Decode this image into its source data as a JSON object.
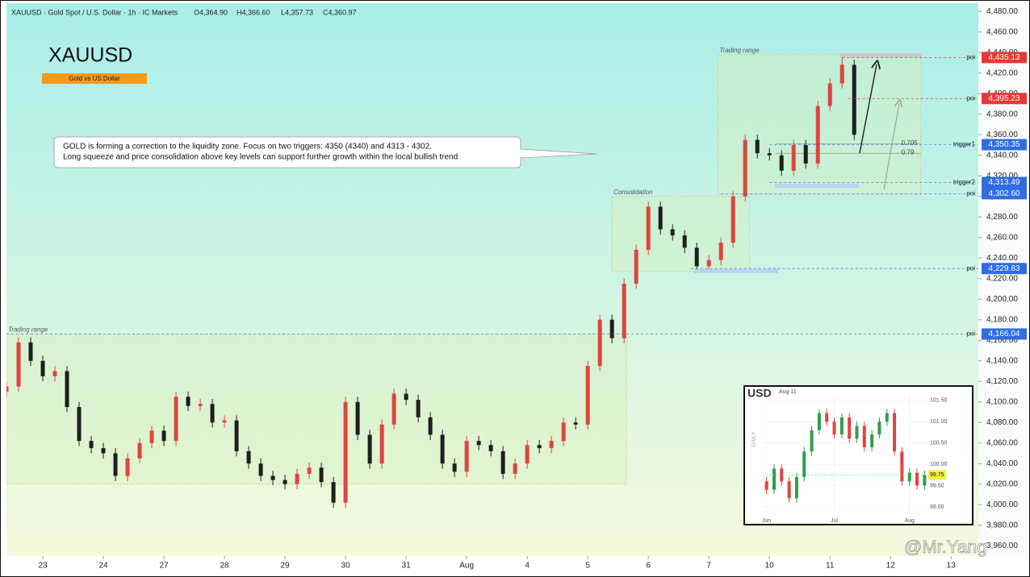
{
  "chart_data": [
    {
      "type": "candlestick",
      "title": "XAUUSD · Gold Spot / U.S. Dollar · 1h · IC Markets",
      "header": [
        {
          "value": 4364.9,
          "label": "O4,364.90"
        },
        {
          "value": 4366.6,
          "label": "H4,366.60"
        },
        {
          "value": 4357.73,
          "label": "L4,357.73"
        },
        {
          "value": 4360.97,
          "label": "C4,360.97"
        }
      ],
      "symbol": "XAUUSD",
      "subtitle": "Gold vs US Dollar",
      "annotation": [
        "GOLD is forming a correction to the liquidity zone. Focus on two triggers: 4350 (4340) and 4313 - 4302.",
        "Long squeeze and price consolidation above key levels can support further growth within the local bullish trend"
      ],
      "watermark": "@Mr.Yang",
      "up_color": "#e0443e",
      "down_color": "#1e1e1e",
      "x": [
        -0.6,
        -0.4,
        -0.2,
        0,
        0.2,
        0.4,
        0.6,
        0.8,
        1,
        1.2,
        1.4,
        1.6,
        1.8,
        2,
        2.2,
        2.4,
        2.6,
        2.8,
        3,
        3.2,
        3.4,
        3.6,
        3.8,
        4,
        4.2,
        4.4,
        4.6,
        4.8,
        5,
        5.2,
        5.4,
        5.6,
        5.8,
        6,
        6.2,
        6.4,
        6.6,
        6.8,
        7,
        7.2,
        7.4,
        7.6,
        7.8,
        8,
        8.2,
        8.4,
        8.6,
        8.8,
        9,
        9.2,
        9.4,
        9.6,
        9.8,
        10,
        10.2,
        10.4,
        10.6,
        10.8,
        11,
        11.2,
        11.4,
        11.6,
        11.8,
        12,
        12.2,
        12.4,
        12.6,
        12.8,
        13,
        13.2,
        13.4
      ],
      "open": [
        4110,
        4115,
        4158,
        4140,
        4125,
        4130,
        4095,
        4062,
        4055,
        4050,
        4028,
        4045,
        4060,
        4072,
        4062,
        4105,
        4096,
        4098,
        4080,
        4082,
        4052,
        4040,
        4028,
        4024,
        4020,
        4030,
        4036,
        4022,
        4002,
        4100,
        4068,
        4040,
        4078,
        4108,
        4102,
        4085,
        4068,
        4040,
        4032,
        4062,
        4058,
        4052,
        4030,
        4040,
        4058,
        4055,
        4062,
        4080,
        4078,
        4135,
        4180,
        4162,
        4215,
        4248,
        4290,
        4268,
        4262,
        4250,
        4232,
        4238,
        4255,
        4300,
        4355,
        4342,
        4340,
        4325,
        4350,
        4332,
        4388,
        4410,
        4428
      ],
      "high": [
        4120,
        4163,
        4163,
        4145,
        4135,
        4135,
        4100,
        4067,
        4060,
        4055,
        4050,
        4065,
        4077,
        4077,
        4110,
        4110,
        4103,
        4103,
        4087,
        4087,
        4057,
        4045,
        4033,
        4029,
        4035,
        4041,
        4041,
        4027,
        4105,
        4105,
        4073,
        4083,
        4113,
        4113,
        4107,
        4090,
        4073,
        4045,
        4067,
        4067,
        4063,
        4057,
        4045,
        4063,
        4063,
        4067,
        4085,
        4085,
        4140,
        4185,
        4185,
        4220,
        4253,
        4295,
        4295,
        4273,
        4267,
        4255,
        4243,
        4260,
        4305,
        4360,
        4360,
        4347,
        4345,
        4355,
        4355,
        4393,
        4415,
        4435,
        4433
      ],
      "low": [
        4105,
        4110,
        4135,
        4120,
        4120,
        4090,
        4057,
        4050,
        4045,
        4023,
        4023,
        4040,
        4055,
        4057,
        4057,
        4091,
        4091,
        4075,
        4075,
        4047,
        4035,
        4023,
        4019,
        4015,
        4015,
        4025,
        4017,
        3997,
        3997,
        4063,
        4035,
        4035,
        4073,
        4097,
        4080,
        4063,
        4035,
        4027,
        4027,
        4053,
        4047,
        4025,
        4025,
        4035,
        4050,
        4050,
        4057,
        4073,
        4073,
        4130,
        4157,
        4157,
        4210,
        4243,
        4263,
        4257,
        4245,
        4227,
        4227,
        4233,
        4250,
        4295,
        4337,
        4335,
        4320,
        4320,
        4327,
        4327,
        4383,
        4405,
        4355
      ],
      "close": [
        4115,
        4158,
        4140,
        4125,
        4130,
        4095,
        4062,
        4055,
        4050,
        4028,
        4045,
        4060,
        4072,
        4062,
        4105,
        4096,
        4098,
        4080,
        4082,
        4052,
        4040,
        4028,
        4024,
        4020,
        4030,
        4036,
        4022,
        4002,
        4100,
        4068,
        4040,
        4078,
        4108,
        4102,
        4085,
        4068,
        4040,
        4032,
        4062,
        4058,
        4052,
        4030,
        4040,
        4058,
        4055,
        4062,
        4080,
        4078,
        4135,
        4180,
        4162,
        4215,
        4248,
        4290,
        4268,
        4262,
        4250,
        4232,
        4238,
        4255,
        4300,
        4355,
        4342,
        4340,
        4325,
        4350,
        4332,
        4388,
        4410,
        4428,
        4360
      ],
      "xlim": [
        -0.6,
        15.45
      ],
      "xticks": [
        {
          "value": 0,
          "label": "23"
        },
        {
          "value": 1,
          "label": "24"
        },
        {
          "value": 2,
          "label": "27"
        },
        {
          "value": 3,
          "label": "28"
        },
        {
          "value": 4,
          "label": "29"
        },
        {
          "value": 5,
          "label": "30"
        },
        {
          "value": 6,
          "label": "31"
        },
        {
          "value": 7,
          "label": "Aug"
        },
        {
          "value": 8,
          "label": "4"
        },
        {
          "value": 9,
          "label": "5"
        },
        {
          "value": 10,
          "label": "6"
        },
        {
          "value": 11,
          "label": "7"
        },
        {
          "value": 12,
          "label": "10"
        },
        {
          "value": 13,
          "label": "11"
        },
        {
          "value": 14,
          "label": "12"
        },
        {
          "value": 15,
          "label": "13"
        }
      ],
      "ylim": [
        3950,
        4488
      ],
      "yticks": [
        {
          "value": 3960,
          "label": "3,960.00"
        },
        {
          "value": 3980,
          "label": "3,980.00"
        },
        {
          "value": 4000,
          "label": "4,000.00"
        },
        {
          "value": 4020,
          "label": "4,020.00"
        },
        {
          "value": 4040,
          "label": "4,040.00"
        },
        {
          "value": 4060,
          "label": "4,060.00"
        },
        {
          "value": 4080,
          "label": "4,080.00"
        },
        {
          "value": 4100,
          "label": "4,100.00"
        },
        {
          "value": 4120,
          "label": "4,120.00"
        },
        {
          "value": 4140,
          "label": "4,140.00"
        },
        {
          "value": 4160,
          "label": "4,160.00"
        },
        {
          "value": 4180,
          "label": "4,180.00"
        },
        {
          "value": 4200,
          "label": "4,200.00"
        },
        {
          "value": 4220,
          "label": "4,220.00"
        },
        {
          "value": 4240,
          "label": "4,240.00"
        },
        {
          "value": 4260,
          "label": "4,260.00"
        },
        {
          "value": 4280,
          "label": "4,280.00"
        },
        {
          "value": 4300,
          "label": "4,300.00"
        },
        {
          "value": 4320,
          "label": "4,320.00"
        },
        {
          "value": 4340,
          "label": "4,340.00"
        },
        {
          "value": 4360,
          "label": "4,360.00"
        },
        {
          "value": 4380,
          "label": "4,380.00"
        },
        {
          "value": 4400,
          "label": "4,400.00"
        },
        {
          "value": 4420,
          "label": "4,420.00"
        },
        {
          "value": 4440,
          "label": "4,440.00"
        },
        {
          "value": 4460,
          "label": "4,460.00"
        },
        {
          "value": 4480,
          "label": "4,480.00"
        }
      ],
      "zones": [
        {
          "label": "Trading range",
          "x": [
            -0.6,
            9.64
          ],
          "y": [
            4020,
            4166
          ]
        },
        {
          "label": "Consolidation",
          "x": [
            9.4,
            11.67
          ],
          "y": [
            4227,
            4300
          ]
        },
        {
          "label": "Trading range",
          "x": [
            11.15,
            14.5
          ],
          "y": [
            4302,
            4438
          ]
        }
      ],
      "levels": [
        {
          "value": 4435.13,
          "label": "4,435.13",
          "tag": "poi",
          "color": "#e53935",
          "from": 13.2
        },
        {
          "value": 4395.23,
          "label": "4,395.23",
          "tag": "poi",
          "color": "#e53935",
          "from": 13.3
        },
        {
          "value": 4350.35,
          "label": "4,350.35",
          "tag": "trigger1",
          "color": "#2f6de1",
          "from": 12.0
        },
        {
          "value": 4313.49,
          "label": "4,313.49",
          "tag": "trigger2",
          "color": "#2f6de1",
          "from": 12.0
        },
        {
          "value": 4302.6,
          "label": "4,302.60",
          "tag": "poi",
          "color": "#2f6de1",
          "from": 11.2
        },
        {
          "value": 4229.83,
          "label": "4,229.83",
          "tag": "poi",
          "color": "#2f6de1",
          "from": 10.7
        },
        {
          "value": 4166.04,
          "label": "4,166.04",
          "tag": "poi",
          "color": "#2f6de1",
          "from": -0.6
        }
      ],
      "fib": [
        {
          "text": "0.705",
          "price": 4351
        },
        {
          "text": "0.79",
          "price": 4342
        }
      ]
    },
    {
      "type": "candlestick",
      "title": "USD",
      "subtitle": "Aug 11",
      "axis_note": "DAILY",
      "up_color": "#2e9e4e",
      "down_color": "#e0443e",
      "x": [
        0,
        1,
        2,
        3,
        4,
        5,
        6,
        7,
        8,
        9,
        10,
        11,
        12,
        13,
        14,
        15,
        16,
        17,
        18,
        19,
        20,
        21
      ],
      "open": [
        99.6,
        99.4,
        99.9,
        99.6,
        99.2,
        99.7,
        100.3,
        100.8,
        101.2,
        101.0,
        100.7,
        101.1,
        100.6,
        100.9,
        100.4,
        100.7,
        101.0,
        101.2,
        100.3,
        99.6,
        99.8,
        99.5
      ],
      "high": [
        99.7,
        100.0,
        100.0,
        99.7,
        99.8,
        100.4,
        100.9,
        101.3,
        101.3,
        101.1,
        101.2,
        101.2,
        101.0,
        101.0,
        100.8,
        101.1,
        101.3,
        101.3,
        100.4,
        99.9,
        99.9,
        99.85
      ],
      "low": [
        99.3,
        99.3,
        99.5,
        99.1,
        99.1,
        99.6,
        100.2,
        100.7,
        100.9,
        100.6,
        100.6,
        100.5,
        100.5,
        100.3,
        100.3,
        100.6,
        100.9,
        100.2,
        99.5,
        99.5,
        99.4,
        99.4
      ],
      "close": [
        99.4,
        99.9,
        99.6,
        99.2,
        99.7,
        100.3,
        100.8,
        101.2,
        101.0,
        100.7,
        101.1,
        100.6,
        100.9,
        100.4,
        100.7,
        101.0,
        101.2,
        100.3,
        99.6,
        99.8,
        99.5,
        99.75
      ],
      "last_price": 99.75,
      "xlim": [
        -0.5,
        21.5
      ],
      "xticks": [
        {
          "value": 0,
          "label": "Jun"
        },
        {
          "value": 9,
          "label": "Jul"
        },
        {
          "value": 19,
          "label": "Aug"
        }
      ],
      "ylim": [
        98.79,
        101.63
      ],
      "yticks": [
        {
          "value": 99,
          "label": "99.00"
        },
        {
          "value": 99.5,
          "label": "99.50"
        },
        {
          "value": 100,
          "label": "100.00"
        },
        {
          "value": 100.5,
          "label": "100.50"
        },
        {
          "value": 101,
          "label": "101.00"
        },
        {
          "value": 101.5,
          "label": "101.50"
        }
      ]
    }
  ]
}
